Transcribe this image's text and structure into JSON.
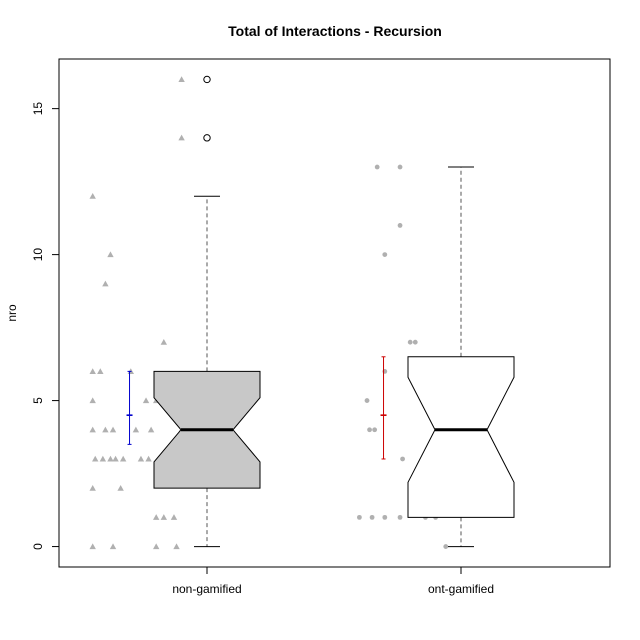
{
  "chart_data": {
    "type": "box",
    "title": "Total of Interactions - Recursion",
    "xlabel": "",
    "ylabel": "nro",
    "ylim": [
      -0.7,
      16.7
    ],
    "yticks": [
      0,
      5,
      10,
      15
    ],
    "categories": [
      "non-gamified",
      "ont-gamified"
    ],
    "boxes": [
      {
        "name": "non-gamified",
        "min": 0,
        "q1": 2,
        "median": 4,
        "q3": 6,
        "max": 12,
        "notch_low": 2.9,
        "notch_high": 5.1,
        "outliers": [
          14,
          16
        ],
        "fill": "#c8c8c8"
      },
      {
        "name": "ont-gamified",
        "min": 0,
        "q1": 1,
        "median": 4,
        "q3": 6.5,
        "max": 13,
        "notch_low": 2.2,
        "notch_high": 5.8,
        "outliers": [],
        "fill": "#ffffff"
      }
    ],
    "mean_ci": [
      {
        "group": "non-gamified",
        "mean": 4.5,
        "low": 3.5,
        "high": 6.0,
        "color": "#0000cc"
      },
      {
        "group": "ont-gamified",
        "mean": 4.5,
        "low": 3.0,
        "high": 6.5,
        "color": "#cc0000"
      }
    ],
    "jitter_points": [
      {
        "group": "non-gamified",
        "marker": "triangle",
        "color": "#b0b0b0",
        "points": [
          [
            -0.45,
            0
          ],
          [
            -0.37,
            0
          ],
          [
            -0.2,
            0
          ],
          [
            -0.12,
            0
          ],
          [
            -0.45,
            2
          ],
          [
            -0.34,
            2
          ],
          [
            -0.44,
            3
          ],
          [
            -0.41,
            3
          ],
          [
            -0.38,
            3
          ],
          [
            -0.36,
            3
          ],
          [
            -0.33,
            3
          ],
          [
            -0.26,
            3
          ],
          [
            -0.23,
            3
          ],
          [
            -0.45,
            4
          ],
          [
            -0.4,
            4
          ],
          [
            -0.37,
            4
          ],
          [
            -0.28,
            4
          ],
          [
            -0.22,
            4
          ],
          [
            -0.1,
            4
          ],
          [
            -0.45,
            5
          ],
          [
            -0.24,
            5
          ],
          [
            -0.2,
            5
          ],
          [
            -0.1,
            5
          ],
          [
            -0.45,
            6
          ],
          [
            -0.42,
            6
          ],
          [
            -0.3,
            6
          ],
          [
            -0.2,
            1
          ],
          [
            -0.17,
            1
          ],
          [
            -0.13,
            1
          ],
          [
            -0.17,
            7
          ],
          [
            -0.4,
            9
          ],
          [
            -0.38,
            10
          ],
          [
            -0.45,
            12
          ],
          [
            -0.1,
            14
          ],
          [
            -0.1,
            16
          ]
        ]
      },
      {
        "group": "ont-gamified",
        "marker": "circle",
        "color": "#b0b0b0",
        "points": [
          [
            -0.4,
            1
          ],
          [
            -0.35,
            1
          ],
          [
            -0.3,
            1
          ],
          [
            -0.24,
            1
          ],
          [
            -0.14,
            1
          ],
          [
            -0.1,
            1
          ],
          [
            -0.36,
            4
          ],
          [
            -0.34,
            4
          ],
          [
            -0.37,
            5
          ],
          [
            -0.3,
            6
          ],
          [
            -0.14,
            6
          ],
          [
            -0.1,
            6
          ],
          [
            -0.09,
            6
          ],
          [
            -0.2,
            7
          ],
          [
            -0.18,
            7
          ],
          [
            -0.23,
            3
          ],
          [
            -0.13,
            3
          ],
          [
            -0.09,
            3
          ],
          [
            -0.06,
            0
          ],
          [
            -0.3,
            10
          ],
          [
            -0.24,
            11
          ],
          [
            -0.33,
            13
          ],
          [
            -0.24,
            13
          ]
        ]
      }
    ]
  }
}
